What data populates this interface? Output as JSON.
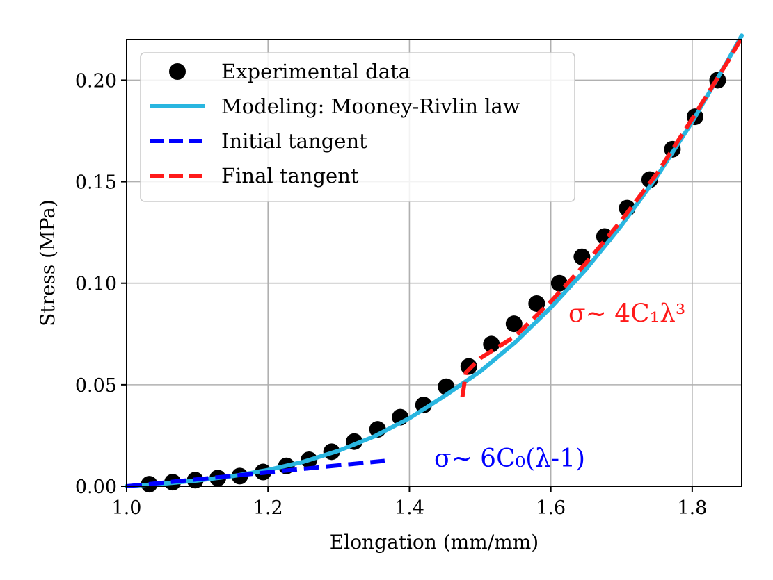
{
  "chart_data": {
    "type": "scatter",
    "title": "",
    "xlabel": "Elongation (mm/mm)",
    "ylabel": "Stress (MPa)",
    "xlim": [
      1.0,
      1.87
    ],
    "ylim": [
      0.0,
      0.22
    ],
    "xticks": [
      1.0,
      1.2,
      1.4,
      1.6,
      1.8
    ],
    "xtick_labels": [
      "1.0",
      "1.2",
      "1.4",
      "1.6",
      "1.8"
    ],
    "yticks": [
      0.0,
      0.05,
      0.1,
      0.15,
      0.2
    ],
    "ytick_labels": [
      "0.00",
      "0.05",
      "0.10",
      "0.15",
      "0.20"
    ],
    "grid": true,
    "legend_position": "top-left",
    "colors": {
      "experimental": "#000000",
      "model": "#29b6e0",
      "initial_tangent": "#0000ff",
      "final_tangent": "#ff1a1a"
    },
    "series": [
      {
        "name": "Experimental data",
        "kind": "scatter",
        "x": [
          1.032,
          1.065,
          1.097,
          1.129,
          1.16,
          1.193,
          1.226,
          1.258,
          1.29,
          1.322,
          1.355,
          1.387,
          1.42,
          1.452,
          1.484,
          1.516,
          1.548,
          1.58,
          1.612,
          1.644,
          1.676,
          1.708,
          1.74,
          1.772,
          1.804,
          1.836
        ],
        "y": [
          0.001,
          0.002,
          0.003,
          0.004,
          0.005,
          0.007,
          0.01,
          0.013,
          0.017,
          0.022,
          0.028,
          0.034,
          0.04,
          0.049,
          0.059,
          0.07,
          0.08,
          0.09,
          0.1,
          0.113,
          0.123,
          0.137,
          0.151,
          0.166,
          0.182,
          0.2
        ]
      },
      {
        "name": "Modeling: Mooney-Rivlin law",
        "kind": "line",
        "x": [
          1.0,
          1.05,
          1.1,
          1.15,
          1.2,
          1.25,
          1.3,
          1.35,
          1.4,
          1.45,
          1.5,
          1.55,
          1.6,
          1.65,
          1.7,
          1.75,
          1.8,
          1.85,
          1.87
        ],
        "y": [
          0.0,
          0.0012,
          0.0028,
          0.005,
          0.008,
          0.012,
          0.0175,
          0.0245,
          0.0335,
          0.0445,
          0.0565,
          0.071,
          0.088,
          0.107,
          0.1285,
          0.1525,
          0.1795,
          0.2095,
          0.222
        ]
      },
      {
        "name": "Initial tangent",
        "kind": "dashed",
        "x": [
          1.0,
          1.365
        ],
        "y": [
          0.0,
          0.0125
        ]
      },
      {
        "name": "Final tangent",
        "kind": "dashed",
        "x": [
          1.475,
          1.48,
          1.5,
          1.55,
          1.6,
          1.65,
          1.7,
          1.75,
          1.8,
          1.85,
          1.87
        ],
        "y": [
          0.044,
          0.056,
          0.063,
          0.074,
          0.091,
          0.11,
          0.131,
          0.154,
          0.181,
          0.209,
          0.221
        ]
      }
    ],
    "annotations": [
      {
        "text": "σ~ 6C₀(λ-1)",
        "x": 1.435,
        "y": 0.0095,
        "color": "#0000ff"
      },
      {
        "text": "σ~ 4C₁λ³",
        "x": 1.625,
        "y": 0.081,
        "color": "#ff1a1a"
      }
    ]
  }
}
